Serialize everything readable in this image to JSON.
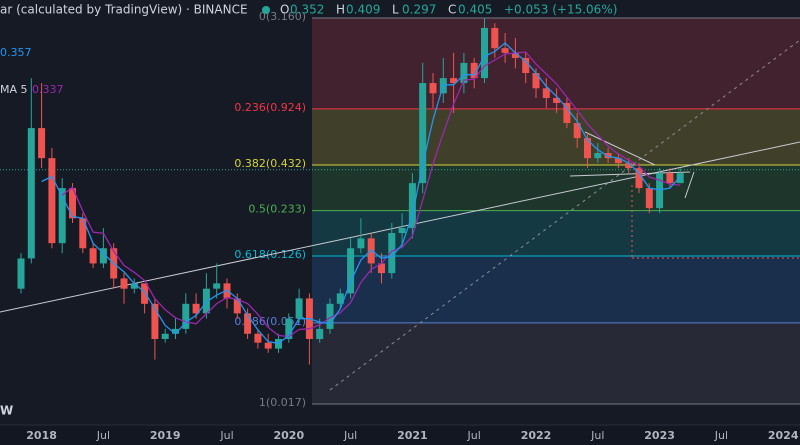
{
  "header": {
    "title": "ar (calculated by TradingView) · BINANCE",
    "ohlc": [
      {
        "label": "O",
        "value": "0.352"
      },
      {
        "label": "H",
        "value": "0.409"
      },
      {
        "label": "L",
        "value": "0.297"
      },
      {
        "label": "C",
        "value": "0.405"
      }
    ],
    "change": "+0.053 (+15.06%)"
  },
  "indicators": [
    {
      "value": "0.357",
      "color": "#2196f3"
    },
    {
      "name": "MA 5",
      "value": "0.337",
      "color": "#9c27b0"
    }
  ],
  "corner_label": "W",
  "chart_data": {
    "type": "candlestick",
    "log": true,
    "ylim": [
      0.0128,
      4.03
    ],
    "up_color": "#26a69a",
    "down_color": "#ef5350",
    "categories": [
      null,
      null,
      "2018",
      null,
      null,
      null,
      null,
      null,
      "Jul",
      null,
      null,
      null,
      null,
      null,
      "2019",
      null,
      null,
      null,
      null,
      null,
      "Jul",
      null,
      null,
      null,
      null,
      null,
      "2020",
      null,
      null,
      null,
      null,
      null,
      "Jul",
      null,
      null,
      null,
      null,
      null,
      "2021",
      null,
      null,
      null,
      null,
      null,
      "Jul",
      null,
      null,
      null,
      null,
      null,
      "2022",
      null,
      null,
      null,
      null,
      null,
      "Jul",
      null,
      null,
      null,
      null,
      null,
      "2023",
      null,
      null,
      null,
      null,
      null,
      "Jul",
      null,
      null,
      null,
      null,
      null,
      "2024",
      null,
      null
    ],
    "candles": [
      [
        0.081,
        0.131,
        0.076,
        0.122
      ],
      [
        0.122,
        1.4,
        0.114,
        0.712
      ],
      [
        0.712,
        1.31,
        0.414,
        0.474
      ],
      [
        0.474,
        0.543,
        0.14,
        0.15
      ],
      [
        0.15,
        0.362,
        0.131,
        0.316
      ],
      [
        0.316,
        0.338,
        0.197,
        0.21
      ],
      [
        0.21,
        0.225,
        0.131,
        0.14
      ],
      [
        0.14,
        0.15,
        0.107,
        0.114
      ],
      [
        0.114,
        0.184,
        0.107,
        0.14
      ],
      [
        0.14,
        0.15,
        0.081,
        0.093
      ],
      [
        0.093,
        0.1,
        0.066,
        0.081
      ],
      [
        0.081,
        0.093,
        0.076,
        0.087
      ],
      [
        0.087,
        0.087,
        0.058,
        0.066
      ],
      [
        0.066,
        0.071,
        0.031,
        0.041
      ],
      [
        0.041,
        0.047,
        0.039,
        0.044
      ],
      [
        0.044,
        0.054,
        0.041,
        0.047
      ],
      [
        0.047,
        0.076,
        0.044,
        0.066
      ],
      [
        0.066,
        0.076,
        0.054,
        0.058
      ],
      [
        0.058,
        0.1,
        0.054,
        0.081
      ],
      [
        0.081,
        0.114,
        0.071,
        0.087
      ],
      [
        0.087,
        0.093,
        0.062,
        0.071
      ],
      [
        0.071,
        0.076,
        0.054,
        0.058
      ],
      [
        0.058,
        0.062,
        0.041,
        0.044
      ],
      [
        0.044,
        0.047,
        0.036,
        0.039
      ],
      [
        0.039,
        0.044,
        0.034,
        0.036
      ],
      [
        0.036,
        0.044,
        0.034,
        0.041
      ],
      [
        0.041,
        0.058,
        0.039,
        0.054
      ],
      [
        0.054,
        0.081,
        0.051,
        0.071
      ],
      [
        0.071,
        0.076,
        0.029,
        0.041
      ],
      [
        0.041,
        0.054,
        0.039,
        0.047
      ],
      [
        0.047,
        0.071,
        0.044,
        0.066
      ],
      [
        0.066,
        0.081,
        0.062,
        0.076
      ],
      [
        0.076,
        0.16,
        0.071,
        0.14
      ],
      [
        0.14,
        0.21,
        0.131,
        0.16
      ],
      [
        0.16,
        0.172,
        0.1,
        0.114
      ],
      [
        0.114,
        0.131,
        0.087,
        0.1
      ],
      [
        0.1,
        0.197,
        0.093,
        0.172
      ],
      [
        0.172,
        0.225,
        0.14,
        0.184
      ],
      [
        0.184,
        0.387,
        0.16,
        0.338
      ],
      [
        0.338,
        1.72,
        0.295,
        1.31
      ],
      [
        1.31,
        1.5,
        0.934,
        1.14
      ],
      [
        1.14,
        1.84,
        1.0,
        1.4
      ],
      [
        1.4,
        1.97,
        0.873,
        1.31
      ],
      [
        1.31,
        1.97,
        1.14,
        1.72
      ],
      [
        1.72,
        1.84,
        1.22,
        1.4
      ],
      [
        1.4,
        3.16,
        1.31,
        2.76
      ],
      [
        2.76,
        2.95,
        1.84,
        2.1
      ],
      [
        2.1,
        2.58,
        1.72,
        1.97
      ],
      [
        1.97,
        2.41,
        1.6,
        1.84
      ],
      [
        1.84,
        1.97,
        1.31,
        1.5
      ],
      [
        1.5,
        1.6,
        1.07,
        1.22
      ],
      [
        1.22,
        1.4,
        0.934,
        1.07
      ],
      [
        1.07,
        1.22,
        0.873,
        1.0
      ],
      [
        1.0,
        1.07,
        0.712,
        0.762
      ],
      [
        0.762,
        0.873,
        0.543,
        0.622
      ],
      [
        0.622,
        0.666,
        0.414,
        0.474
      ],
      [
        0.474,
        0.581,
        0.443,
        0.508
      ],
      [
        0.508,
        0.543,
        0.443,
        0.474
      ],
      [
        0.474,
        0.508,
        0.414,
        0.443
      ],
      [
        0.443,
        0.474,
        0.387,
        0.414
      ],
      [
        0.414,
        0.443,
        0.295,
        0.316
      ],
      [
        0.316,
        0.338,
        0.225,
        0.241
      ],
      [
        0.241,
        0.414,
        0.225,
        0.387
      ],
      [
        0.387,
        0.414,
        0.316,
        0.338
      ],
      [
        0.338,
        0.414,
        0.338,
        0.387
      ]
    ],
    "fib_levels": [
      {
        "label": "0(3.160)",
        "value": 3.16,
        "color": "#787b86",
        "zone": "#4a2530"
      },
      {
        "label": "0.236(0.924)",
        "value": 0.924,
        "color": "#f23645",
        "zone": "#48462a"
      },
      {
        "label": "0.382(0.432)",
        "value": 0.432,
        "color": "#d4d43a",
        "zone": "#1f3b2c"
      },
      {
        "label": "0.5(0.233)",
        "value": 0.233,
        "color": "#4caf50",
        "zone": "#143f48"
      },
      {
        "label": "0.618(0.126)",
        "value": 0.126,
        "color": "#00bcd4",
        "zone": "#1a3454"
      },
      {
        "label": "0.786(0.051)",
        "value": 0.051,
        "color": "#5b7fd6",
        "zone": "#2a2e39"
      },
      {
        "label": "1(0.017)",
        "value": 0.017,
        "color": "#787b86",
        "zone": null
      }
    ]
  }
}
